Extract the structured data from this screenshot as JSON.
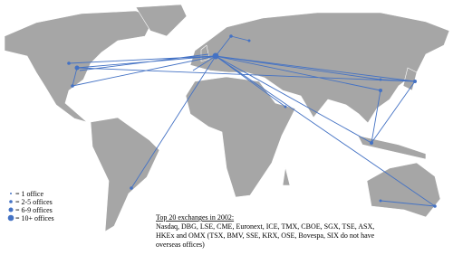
{
  "legend": {
    "items": [
      "= 1 office",
      "= 2-5 offices",
      "= 6-9 offices",
      "= 10+ offices"
    ]
  },
  "annotation": {
    "heading": "Top 20 exchanges in 2002:",
    "lines": [
      "Nasdaq, DBG, LSE, CME, Euronext, ICE, TMX, CBOE, SGX, TSE, ASX,",
      "HKEx and OMX (TSX, BMV, SSE, KRX, OSE, Bovespa, SIX do not have",
      "overseas offices)"
    ]
  }
}
